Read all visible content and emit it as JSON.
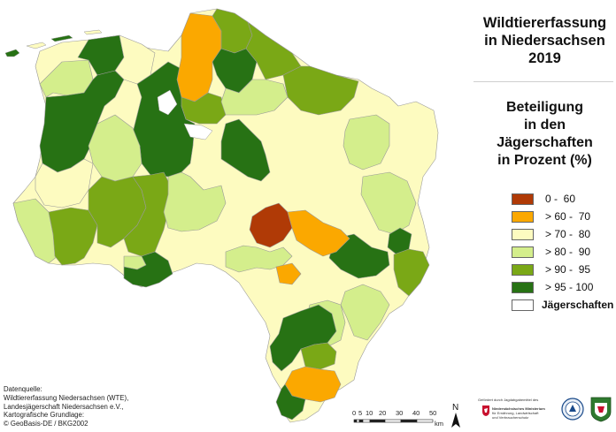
{
  "title": [
    "Wildtiererfassung",
    "in Niedersachsen",
    "2019"
  ],
  "subtitle": [
    "Beteiligung",
    "in den",
    "Jägerschaften",
    "in Prozent (%)"
  ],
  "legend": [
    {
      "label": "0 -  60",
      "color": "#b03a06"
    },
    {
      "label": "> 60 -  70",
      "color": "#fba800"
    },
    {
      "label": "> 70 -  80",
      "color": "#fdfbc0"
    },
    {
      "label": "> 80 -  90",
      "color": "#d4ee8c"
    },
    {
      "label": "> 90 -  95",
      "color": "#7aa816"
    },
    {
      "label": "> 95 - 100",
      "color": "#277214"
    },
    {
      "label": "Jägerschaften",
      "color": "#ffffff"
    }
  ],
  "source": {
    "lines": [
      "Datenquelle:",
      "Wildtiererfassung Niedersachsen (WTE),",
      "Landesjägerschaft Niedersachsen e.V.,",
      "Kartografische Grundlage:",
      "© GeoBasis-DE / BKG2002"
    ]
  },
  "scale": {
    "ticks": [
      "0",
      "5",
      "10",
      "20",
      "30",
      "40",
      "50"
    ],
    "unit": "km"
  },
  "north_label": "N",
  "logos": {
    "funding_text": "Gefördert durch Jagdabgabemittel des",
    "ministry_lines": [
      "Niedersächsisches Ministerium",
      "für Ernährung, Landwirtschaft",
      "und Verbraucherschutz"
    ]
  },
  "map_regions": [
    {
      "name": "jaegerschaft-ostfriesland-west",
      "class": "> 80 -  90"
    },
    {
      "name": "jaegerschaft-wittmund",
      "class": "> 95 - 100"
    },
    {
      "name": "jaegerschaft-aurich",
      "class": "> 95 - 100"
    },
    {
      "name": "jaegerschaft-cuxhaven-north",
      "class": "> 60 -  70"
    },
    {
      "name": "jaegerschaft-hildesheim",
      "class": "0 -  60"
    },
    {
      "name": "jaegerschaft-peine",
      "class": "> 60 -  70"
    },
    {
      "name": "jaegerschaft-goettingen",
      "class": "> 60 -  70"
    }
  ]
}
